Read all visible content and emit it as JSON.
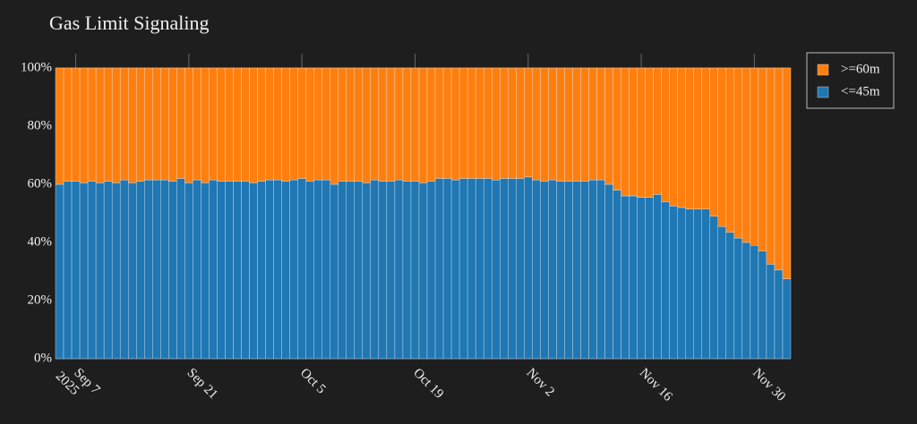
{
  "chart_data": {
    "type": "bar",
    "stacked": true,
    "title": "Gas Limit Signaling",
    "x": [
      "2025-09-05",
      "2025-09-06",
      "2025-09-07",
      "2025-09-08",
      "2025-09-09",
      "2025-09-10",
      "2025-09-11",
      "2025-09-12",
      "2025-09-13",
      "2025-09-14",
      "2025-09-15",
      "2025-09-16",
      "2025-09-17",
      "2025-09-18",
      "2025-09-19",
      "2025-09-20",
      "2025-09-21",
      "2025-09-22",
      "2025-09-23",
      "2025-09-24",
      "2025-09-25",
      "2025-09-26",
      "2025-09-27",
      "2025-09-28",
      "2025-09-29",
      "2025-09-30",
      "2025-10-01",
      "2025-10-02",
      "2025-10-03",
      "2025-10-04",
      "2025-10-05",
      "2025-10-06",
      "2025-10-07",
      "2025-10-08",
      "2025-10-09",
      "2025-10-10",
      "2025-10-11",
      "2025-10-12",
      "2025-10-13",
      "2025-10-14",
      "2025-10-15",
      "2025-10-16",
      "2025-10-17",
      "2025-10-18",
      "2025-10-19",
      "2025-10-20",
      "2025-10-21",
      "2025-10-22",
      "2025-10-23",
      "2025-10-24",
      "2025-10-25",
      "2025-10-26",
      "2025-10-27",
      "2025-10-28",
      "2025-10-29",
      "2025-10-30",
      "2025-10-31",
      "2025-11-01",
      "2025-11-02",
      "2025-11-03",
      "2025-11-04",
      "2025-11-05",
      "2025-11-06",
      "2025-11-07",
      "2025-11-08",
      "2025-11-09",
      "2025-11-10",
      "2025-11-11",
      "2025-11-12",
      "2025-11-13",
      "2025-11-14",
      "2025-11-15",
      "2025-11-16",
      "2025-11-17",
      "2025-11-18",
      "2025-11-19",
      "2025-11-20",
      "2025-11-21",
      "2025-11-22",
      "2025-11-23",
      "2025-11-24",
      "2025-11-25",
      "2025-11-26",
      "2025-11-27",
      "2025-11-28",
      "2025-11-29",
      "2025-11-30",
      "2025-12-01",
      "2025-12-02",
      "2025-12-03",
      "2025-12-04"
    ],
    "series": [
      {
        "name": "<=45m",
        "color": "#1f77b4",
        "values": [
          60,
          61,
          61,
          60.5,
          61,
          60.5,
          61,
          60.5,
          61.5,
          60.5,
          61,
          61.5,
          61.5,
          61.5,
          61,
          62,
          60.5,
          61.5,
          60.5,
          61.5,
          61,
          61,
          61,
          61,
          60.5,
          61,
          61.5,
          61.5,
          61,
          61.5,
          62,
          61,
          61.5,
          61.5,
          60,
          61,
          61,
          61,
          60.5,
          61.5,
          61,
          61,
          61.5,
          61,
          61,
          60.5,
          61,
          62,
          62,
          61.5,
          62,
          62,
          62,
          62,
          61.5,
          62,
          62,
          62,
          62.5,
          61.5,
          61,
          61.5,
          61,
          61,
          61,
          61,
          61.5,
          61.5,
          60,
          58,
          56,
          56,
          55.5,
          55.5,
          56.5,
          54,
          52.5,
          52,
          51.5,
          51.5,
          51.5,
          49,
          45.5,
          43.5,
          41.5,
          40,
          39,
          37,
          32.5,
          30.5,
          27.5
        ]
      },
      {
        "name": ">=60m",
        "color": "#ff7f0e",
        "values": [
          40,
          39,
          39,
          39.5,
          39,
          39.5,
          39,
          39.5,
          38.5,
          39.5,
          39,
          38.5,
          38.5,
          38.5,
          39,
          38,
          39.5,
          38.5,
          39.5,
          38.5,
          39,
          39,
          39,
          39,
          39.5,
          39,
          38.5,
          38.5,
          39,
          38.5,
          38,
          39,
          38.5,
          38.5,
          40,
          39,
          39,
          39,
          39.5,
          38.5,
          39,
          39,
          38.5,
          39,
          39,
          39.5,
          39,
          38,
          38,
          38.5,
          38,
          38,
          38,
          38,
          38.5,
          38,
          38,
          38,
          37.5,
          38.5,
          39,
          38.5,
          39,
          39,
          39,
          39,
          38.5,
          38.5,
          40,
          42,
          44,
          44,
          44.5,
          44.5,
          43.5,
          46,
          47.5,
          48,
          48.5,
          48.5,
          48.5,
          51,
          54.5,
          56.5,
          58.5,
          60,
          61,
          63,
          67.5,
          69.5,
          72.5
        ]
      }
    ],
    "xlim": [
      "2025-09-04T12:00:00",
      "2025-12-04T12:00:00"
    ],
    "xticks": [
      {
        "value": "2025-09-07",
        "label": "Sep 7",
        "label2": "2025"
      },
      {
        "value": "2025-09-21",
        "label": "Sep 21"
      },
      {
        "value": "2025-10-05",
        "label": "Oct 5"
      },
      {
        "value": "2025-10-19",
        "label": "Oct 19"
      },
      {
        "value": "2025-11-02",
        "label": "Nov 2"
      },
      {
        "value": "2025-11-16",
        "label": "Nov 16"
      },
      {
        "value": "2025-11-30",
        "label": "Nov 30"
      }
    ],
    "ylim": [
      0,
      100
    ],
    "yticks": [
      {
        "value": 0,
        "label": "0%"
      },
      {
        "value": 20,
        "label": "20%"
      },
      {
        "value": 40,
        "label": "40%"
      },
      {
        "value": 60,
        "label": "60%"
      },
      {
        "value": 80,
        "label": "80%"
      },
      {
        "value": 100,
        "label": "100%"
      }
    ],
    "grid": true,
    "legend": "top-right"
  }
}
